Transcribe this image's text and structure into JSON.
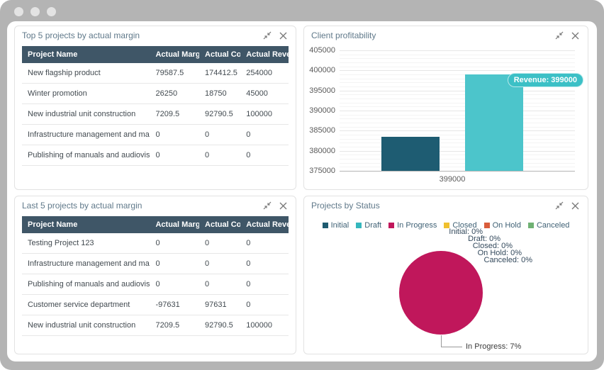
{
  "window": {
    "controls": [
      "dot",
      "dot",
      "dot"
    ]
  },
  "panels": {
    "top_projects": {
      "title": "Top 5 projects by actual margin",
      "table": {
        "columns": [
          "Project Name",
          "Actual Margin",
          "Actual Cost",
          "Actual Revenue"
        ],
        "rows": [
          [
            "New flagship product",
            "79587.5",
            "174412.5",
            "254000"
          ],
          [
            "Winter promotion",
            "26250",
            "18750",
            "45000"
          ],
          [
            "New industrial unit construction",
            "7209.5",
            "92790.5",
            "100000"
          ],
          [
            "Infrastructure management and maintenance",
            "0",
            "0",
            "0"
          ],
          [
            "Publishing of manuals and audiovisual",
            "0",
            "0",
            "0"
          ]
        ]
      }
    },
    "last_projects": {
      "title": "Last 5 projects by actual margin",
      "table": {
        "columns": [
          "Project Name",
          "Actual Margin",
          "Actual Cost",
          "Actual Revenue"
        ],
        "rows": [
          [
            "Testing Project 123",
            "0",
            "0",
            "0"
          ],
          [
            "Infrastructure management and maintenance",
            "0",
            "0",
            "0"
          ],
          [
            "Publishing of manuals and audiovisual",
            "0",
            "0",
            "0"
          ],
          [
            "Customer service department",
            "-97631",
            "97631",
            "0"
          ],
          [
            "New industrial unit construction",
            "7209.5",
            "92790.5",
            "100000"
          ]
        ]
      }
    },
    "client_profitability": {
      "title": "Client profitability"
    },
    "projects_by_status": {
      "title": "Projects by Status"
    }
  },
  "chart_data": [
    {
      "type": "bar",
      "title": "Client profitability",
      "categories": [
        "399000"
      ],
      "series": [
        {
          "name": "",
          "values": [
            383500
          ],
          "color": "#1e5c72"
        },
        {
          "name": "Revenue",
          "values": [
            399000
          ],
          "color": "#4cc5cb"
        }
      ],
      "ylim": [
        375000,
        405000
      ],
      "yticks": [
        405000,
        400000,
        395000,
        390000,
        385000,
        380000,
        375000
      ],
      "minor_step": 1000,
      "grid": true,
      "tooltip": {
        "text": "Revenue: 399000",
        "color": "#3cc0c6"
      }
    },
    {
      "type": "pie",
      "title": "Projects by Status",
      "legend_position": "top",
      "slices": [
        {
          "label": "Initial",
          "pct": 0,
          "color": "#1e5b70",
          "annotation": "Initial: 0%"
        },
        {
          "label": "Draft",
          "pct": 0,
          "color": "#35b7bd",
          "annotation": "Draft: 0%"
        },
        {
          "label": "In Progress",
          "pct": 7,
          "color": "#c0175b",
          "annotation": "In Progress: 7%"
        },
        {
          "label": "Closed",
          "pct": 0,
          "color": "#f0c02f",
          "annotation": "Closed: 0%"
        },
        {
          "label": "On Hold",
          "pct": 0,
          "color": "#d95c3b",
          "annotation": "On Hold: 0%"
        },
        {
          "label": "Canceled",
          "pct": 0,
          "color": "#6fb173",
          "annotation": "Canceled: 0%"
        }
      ]
    }
  ]
}
